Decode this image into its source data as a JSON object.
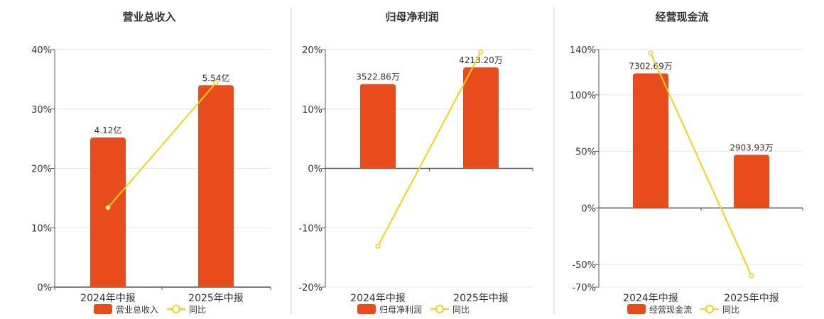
{
  "colors": {
    "bar": "#e84c1c",
    "line": "#f2d01e",
    "axis": "#555555",
    "grid": "#e6e6e6",
    "divider": "#cccccc",
    "text": "#333333"
  },
  "chart_data": [
    {
      "type": "bar",
      "title": "营业总收入",
      "categories": [
        "2024年中报",
        "2025年中报"
      ],
      "series": [
        {
          "name": "营业总收入",
          "type": "bar",
          "values": [
            25.2,
            34.0
          ],
          "labels": [
            "4.12亿",
            "5.54亿"
          ]
        },
        {
          "name": "同比",
          "type": "line",
          "values": [
            13.4,
            34.4
          ]
        }
      ],
      "yticks": [
        "40%",
        "30%",
        "20%",
        "10%",
        "0%"
      ],
      "ylim": [
        0,
        40
      ],
      "ytick_values": [
        40,
        30,
        20,
        10,
        0
      ],
      "legend": "bottom",
      "grid": true
    },
    {
      "type": "bar",
      "title": "归母净利润",
      "categories": [
        "2024年中报",
        "2025年中报"
      ],
      "series": [
        {
          "name": "归母净利润",
          "type": "bar",
          "values": [
            14.2,
            17.0
          ],
          "labels": [
            "3522.86万",
            "4213.20万"
          ]
        },
        {
          "name": "同比",
          "type": "line",
          "values": [
            -13.1,
            19.6
          ]
        }
      ],
      "yticks": [
        "20%",
        "10%",
        "0%",
        "-10%",
        "-20%"
      ],
      "ylim": [
        -20,
        20
      ],
      "ytick_values": [
        20,
        10,
        0,
        -10,
        -20
      ],
      "legend": "bottom",
      "grid": true
    },
    {
      "type": "bar",
      "title": "经营现金流",
      "categories": [
        "2024年中报",
        "2025年中报"
      ],
      "series": [
        {
          "name": "经营现金流",
          "type": "bar",
          "values": [
            119.0,
            47.0
          ],
          "labels": [
            "7302.69万",
            "2903.93万"
          ]
        },
        {
          "name": "同比",
          "type": "line",
          "values": [
            137.0,
            -60.0
          ]
        }
      ],
      "yticks": [
        "140%",
        "100%",
        "50%",
        "0%",
        "-50%",
        "-70%"
      ],
      "ylim": [
        -70,
        140
      ],
      "ytick_values": [
        140,
        100,
        50,
        0,
        -50,
        -70
      ],
      "legend": "bottom",
      "grid": true
    }
  ]
}
